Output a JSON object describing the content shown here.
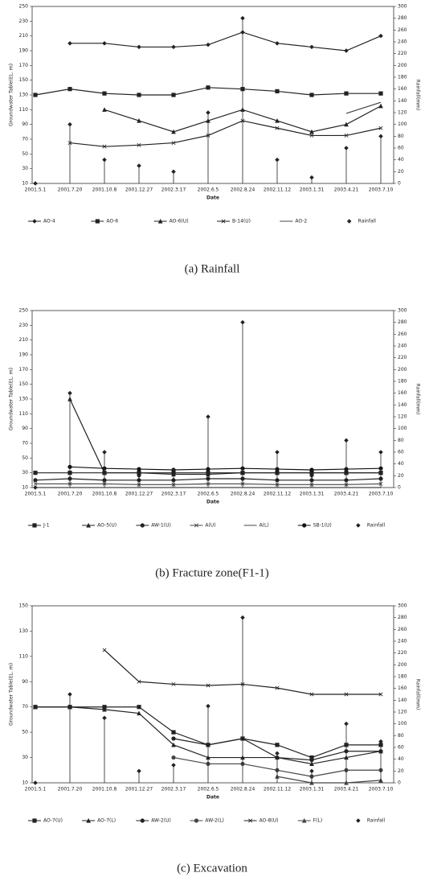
{
  "chart_data": [
    {
      "type": "line",
      "caption": "(a) Rainfall",
      "xlabel": "Date",
      "ylabel": "Groundwater Table(EL. m)",
      "y2label": "Rainfall(mm)",
      "categories": [
        "2001.5.1",
        "2001.7.20",
        "2001.10.8",
        "2001.12.27",
        "2002.3.17",
        "2002.6.5",
        "2002.8.24",
        "2002.11.12",
        "2003.1.31",
        "2003.4.21",
        "2003.7.10"
      ],
      "ylim": [
        10,
        250
      ],
      "yticks": [
        10,
        30,
        50,
        70,
        90,
        110,
        130,
        150,
        170,
        190,
        210,
        230,
        250
      ],
      "y2lim": [
        0,
        300
      ],
      "y2ticks": [
        0,
        20,
        40,
        60,
        80,
        100,
        120,
        140,
        160,
        180,
        200,
        220,
        240,
        260,
        280,
        300
      ],
      "series": [
        {
          "name": "AO-4",
          "color": "#222222",
          "marker": "diamond",
          "values": [
            null,
            200,
            200,
            195,
            195,
            198,
            215,
            200,
            195,
            190,
            210
          ]
        },
        {
          "name": "AO-6",
          "color": "#222222",
          "marker": "square",
          "values": [
            130,
            138,
            132,
            130,
            130,
            140,
            138,
            135,
            130,
            132,
            132
          ]
        },
        {
          "name": "AO-6(U)",
          "color": "#222222",
          "marker": "triangle",
          "values": [
            null,
            null,
            110,
            95,
            80,
            95,
            110,
            95,
            80,
            90,
            115
          ]
        },
        {
          "name": "B-14(U)",
          "color": "#222222",
          "marker": "cross",
          "values": [
            null,
            65,
            60,
            62,
            65,
            75,
            95,
            85,
            75,
            75,
            85
          ]
        },
        {
          "name": "AO-2",
          "color": "#444444",
          "marker": "none",
          "values": [
            null,
            null,
            null,
            null,
            null,
            null,
            null,
            null,
            null,
            105,
            120
          ]
        },
        {
          "name": "Rainfall",
          "color": "#222222",
          "marker": "diamond",
          "axis": "y2",
          "stem": true,
          "values": [
            0,
            100,
            40,
            30,
            20,
            120,
            280,
            40,
            10,
            60,
            80
          ]
        }
      ]
    },
    {
      "type": "line",
      "caption": "(b) Fracture zone(F1-1)",
      "xlabel": "Date",
      "ylabel": "Groundwater Table(EL. m)",
      "y2label": "Rainfall(mm)",
      "categories": [
        "2001.5.1",
        "2001.7.20",
        "2001.10.8",
        "2001.12.27",
        "2002.3.17",
        "2002.6.5",
        "2002.8.24",
        "2002.11.12",
        "2003.1.31",
        "2003.4.21",
        "2003.7.10"
      ],
      "ylim": [
        10,
        250
      ],
      "yticks": [
        10,
        30,
        50,
        70,
        90,
        110,
        130,
        150,
        170,
        190,
        210,
        230,
        250
      ],
      "y2lim": [
        0,
        300
      ],
      "y2ticks": [
        0,
        20,
        40,
        60,
        80,
        100,
        120,
        140,
        160,
        180,
        200,
        220,
        240,
        260,
        280,
        300
      ],
      "series": [
        {
          "name": "J-1",
          "color": "#222222",
          "marker": "square",
          "values": [
            30,
            30,
            30,
            30,
            30,
            30,
            30,
            30,
            30,
            30,
            30
          ]
        },
        {
          "name": "AO-5(U)",
          "color": "#222222",
          "marker": "triangle",
          "values": [
            null,
            130,
            30,
            30,
            28,
            28,
            30,
            30,
            30,
            30,
            30
          ]
        },
        {
          "name": "AW-1(U)",
          "color": "#222222",
          "marker": "circle",
          "values": [
            20,
            22,
            20,
            20,
            20,
            22,
            22,
            20,
            20,
            20,
            22
          ]
        },
        {
          "name": "A(U)",
          "color": "#444444",
          "marker": "cross",
          "values": [
            15,
            15,
            15,
            14,
            14,
            15,
            15,
            14,
            14,
            14,
            15
          ]
        },
        {
          "name": "A(L)",
          "color": "#444444",
          "marker": "none",
          "values": [
            10,
            10,
            10,
            10,
            10,
            10,
            10,
            10,
            10,
            10,
            10
          ]
        },
        {
          "name": "SB-1(U)",
          "color": "#111111",
          "marker": "circle",
          "values": [
            null,
            38,
            36,
            35,
            34,
            35,
            36,
            35,
            34,
            35,
            36
          ]
        },
        {
          "name": "Rainfall",
          "color": "#222222",
          "marker": "diamond",
          "axis": "y2",
          "stem": true,
          "values": [
            0,
            160,
            60,
            20,
            30,
            120,
            280,
            60,
            20,
            80,
            60
          ]
        }
      ]
    },
    {
      "type": "line",
      "caption": "(c) Excavation",
      "xlabel": "Date",
      "ylabel": "Groundwater Table(EL. m)",
      "y2label": "Rainfall(mm)",
      "categories": [
        "2001.5.1",
        "2001.7.20",
        "2001.10.8",
        "2001.12.27",
        "2002.3.17",
        "2002.6.5",
        "2002.8.24",
        "2002.11.12",
        "2003.1.31",
        "2003.4.21",
        "2003.7.10"
      ],
      "ylim": [
        10,
        150
      ],
      "yticks": [
        10,
        30,
        50,
        70,
        90,
        110,
        130,
        150
      ],
      "y2lim": [
        0,
        300
      ],
      "y2ticks": [
        0,
        20,
        40,
        60,
        80,
        100,
        120,
        140,
        160,
        180,
        200,
        220,
        240,
        260,
        280,
        300
      ],
      "series": [
        {
          "name": "AO-7(U)",
          "color": "#222222",
          "marker": "square",
          "values": [
            70,
            70,
            70,
            70,
            50,
            40,
            45,
            40,
            30,
            40,
            40
          ]
        },
        {
          "name": "AO-7(L)",
          "color": "#222222",
          "marker": "triangle",
          "values": [
            70,
            70,
            68,
            65,
            40,
            30,
            30,
            30,
            25,
            30,
            35
          ]
        },
        {
          "name": "AW-2(U)",
          "color": "#222222",
          "marker": "circle",
          "values": [
            null,
            null,
            null,
            null,
            45,
            40,
            45,
            30,
            28,
            35,
            35
          ]
        },
        {
          "name": "AW-2(L)",
          "color": "#444444",
          "marker": "circle",
          "values": [
            null,
            null,
            null,
            null,
            30,
            25,
            25,
            20,
            15,
            20,
            20
          ]
        },
        {
          "name": "AO-8(U)",
          "color": "#222222",
          "marker": "cross",
          "values": [
            null,
            null,
            115,
            90,
            88,
            87,
            88,
            85,
            80,
            80,
            80
          ]
        },
        {
          "name": "F(L)",
          "color": "#444444",
          "marker": "triangle",
          "values": [
            null,
            null,
            null,
            null,
            null,
            null,
            null,
            15,
            10,
            10,
            12
          ]
        },
        {
          "name": "Rainfall",
          "color": "#222222",
          "marker": "diamond",
          "axis": "y2",
          "stem": true,
          "values": [
            0,
            150,
            110,
            20,
            30,
            130,
            280,
            50,
            20,
            100,
            70
          ]
        }
      ]
    }
  ]
}
